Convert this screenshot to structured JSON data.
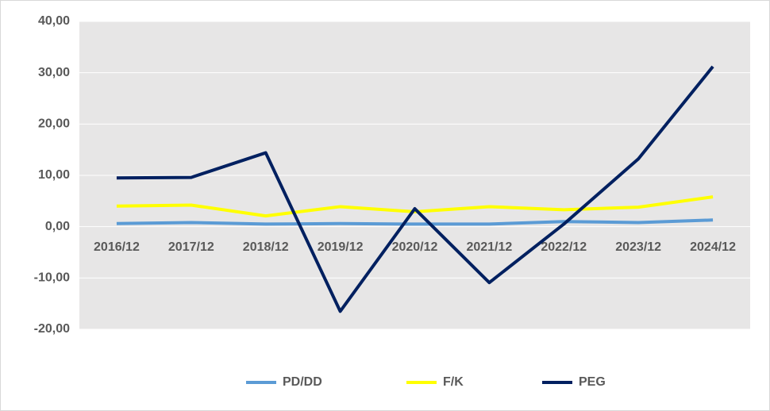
{
  "chart_data": {
    "type": "line",
    "categories": [
      "2016/12",
      "2017/12",
      "2018/12",
      "2019/12",
      "2020/12",
      "2021/12",
      "2022/12",
      "2023/12",
      "2024/12"
    ],
    "series": [
      {
        "name": "PD/DD",
        "color": "#5b9bd5",
        "values": [
          0.6,
          0.8,
          0.5,
          0.6,
          0.5,
          0.5,
          1.0,
          0.8,
          1.3
        ]
      },
      {
        "name": "F/K",
        "color": "#ffff00",
        "values": [
          4.0,
          4.2,
          2.1,
          3.9,
          2.9,
          3.9,
          3.3,
          3.8,
          5.8
        ]
      },
      {
        "name": "PEG",
        "color": "#002060",
        "values": [
          9.5,
          9.6,
          14.4,
          -16.5,
          3.5,
          -10.9,
          0.5,
          13.2,
          31.2
        ]
      }
    ],
    "ylim": [
      -20,
      40
    ],
    "yticks": [
      {
        "value": -20,
        "label": "-20,00"
      },
      {
        "value": -10,
        "label": "-10,00"
      },
      {
        "value": 0,
        "label": "0,00"
      },
      {
        "value": 10,
        "label": "10,00"
      },
      {
        "value": 20,
        "label": "20,00"
      },
      {
        "value": 30,
        "label": "30,00"
      },
      {
        "value": 40,
        "label": "40,00"
      }
    ],
    "grid": true,
    "legend": "bottom"
  }
}
